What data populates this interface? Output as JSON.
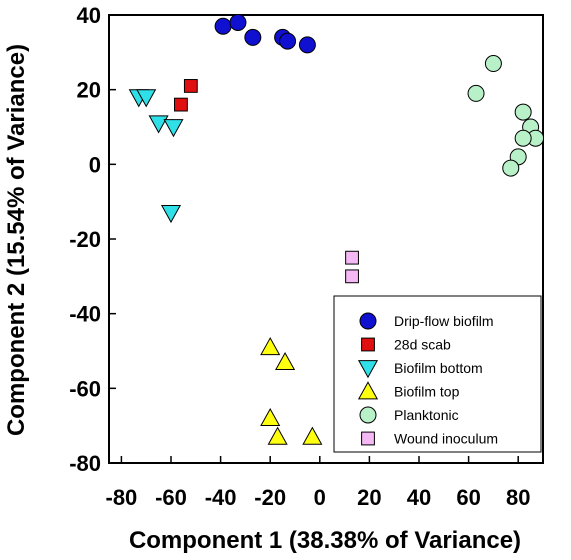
{
  "chart_data": {
    "type": "scatter",
    "title": "",
    "xlabel": "Component 1 (38.38% of Variance)",
    "ylabel": "Component 2 (15.54% of Variance)",
    "xlim": [
      -85,
      90
    ],
    "ylim": [
      -80,
      40
    ],
    "xticks": [
      -80,
      -60,
      -40,
      -20,
      0,
      20,
      40,
      60,
      80
    ],
    "yticks": [
      40,
      20,
      0,
      -20,
      -40,
      -60,
      -80
    ],
    "grid": false,
    "legend_position": "bottom-right",
    "series": [
      {
        "name": "Drip-flow biofilm",
        "marker": "circle",
        "color": "#1010d0",
        "points": [
          [
            -39,
            37
          ],
          [
            -33,
            38
          ],
          [
            -27,
            34
          ],
          [
            -15,
            34
          ],
          [
            -13,
            33
          ],
          [
            -5,
            32
          ]
        ]
      },
      {
        "name": "28d scab",
        "marker": "square",
        "color": "#e01010",
        "points": [
          [
            -52,
            21
          ],
          [
            -56,
            16
          ]
        ]
      },
      {
        "name": "Biofilm bottom",
        "marker": "triangle-down",
        "color": "#30e0e8",
        "points": [
          [
            -73,
            18
          ],
          [
            -70,
            18
          ],
          [
            -65,
            11
          ],
          [
            -59,
            10
          ],
          [
            -60,
            -13
          ]
        ]
      },
      {
        "name": "Biofilm top",
        "marker": "triangle-up",
        "color": "#ffff10",
        "points": [
          [
            -20,
            -49
          ],
          [
            -14,
            -53
          ],
          [
            -20,
            -68
          ],
          [
            -17,
            -73
          ],
          [
            -3,
            -73
          ]
        ]
      },
      {
        "name": "Planktonic",
        "marker": "circle",
        "color": "#b8f0c8",
        "points": [
          [
            70,
            27
          ],
          [
            63,
            19
          ],
          [
            82,
            14
          ],
          [
            85,
            10
          ],
          [
            87,
            7
          ],
          [
            82,
            7
          ],
          [
            80,
            2
          ],
          [
            77,
            -1
          ]
        ]
      },
      {
        "name": "Wound inoculum",
        "marker": "square",
        "color": "#f4b8f4",
        "points": [
          [
            13,
            -25
          ],
          [
            13,
            -30
          ]
        ]
      }
    ]
  }
}
